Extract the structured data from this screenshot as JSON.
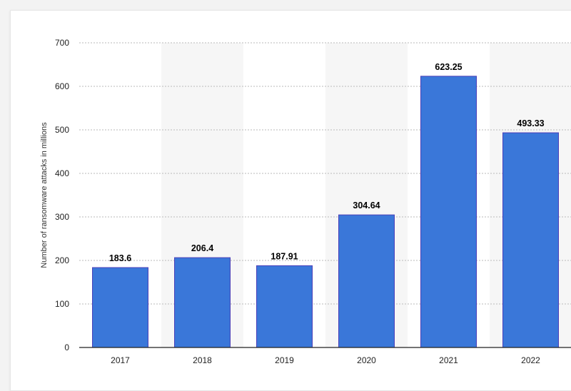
{
  "chart_data": {
    "type": "bar",
    "categories": [
      "2017",
      "2018",
      "2019",
      "2020",
      "2021",
      "2022"
    ],
    "values": [
      183.6,
      206.4,
      187.91,
      304.64,
      623.25,
      493.33
    ],
    "value_labels": [
      "183.6",
      "206.4",
      "187.91",
      "304.64",
      "623.25",
      "493.33"
    ],
    "title": "",
    "xlabel": "",
    "ylabel": "Number of ransomware attacks in millions",
    "ylim": [
      0,
      700
    ],
    "yticks": [
      "0",
      "100",
      "200",
      "300",
      "400",
      "500",
      "600",
      "700"
    ],
    "grid": true,
    "legend": "none"
  },
  "colors": {
    "bar": "#3a77d9",
    "bar_edge": "#4a3fb8",
    "grid": "#b9b9b9",
    "band": "#f6f6f6",
    "axis": "#222222"
  }
}
